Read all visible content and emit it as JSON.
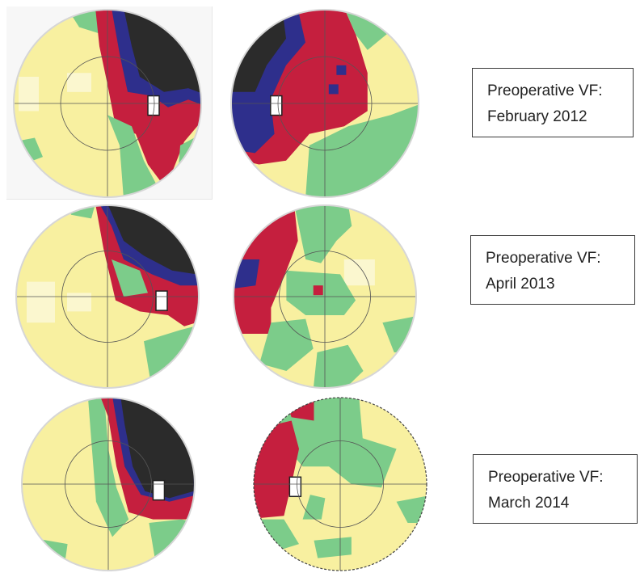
{
  "visits": [
    {
      "line1": "Preoperative VF:",
      "line2": "February 2012"
    },
    {
      "line1": "Preoperative VF:",
      "line2": "April 2013"
    },
    {
      "line1": "Preoperative VF:",
      "line2": "March 2014"
    }
  ],
  "colors": {
    "yellow": "#f8f0a0",
    "pale_yellow": "#fbf7cf",
    "green": "#7ccc8a",
    "red": "#c51f3e",
    "blue": "#2e2f8c",
    "dark": "#2b2b2b",
    "blind_spot": "#ffffff"
  }
}
